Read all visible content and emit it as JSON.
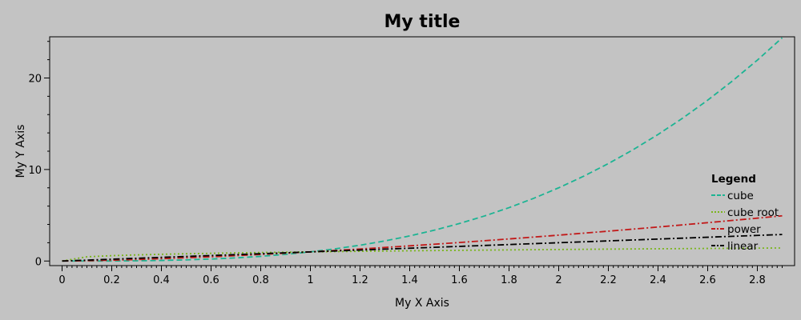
{
  "chart_data": {
    "type": "line",
    "title": "My title",
    "xlabel": "My X Axis",
    "ylabel": "My Y Axis",
    "xlim": [
      -0.05,
      2.95
    ],
    "ylim": [
      -0.5,
      24.5
    ],
    "x_ticks": [
      "0",
      "0.2",
      "0.4",
      "0.6",
      "0.8",
      "1",
      "1.2",
      "1.4",
      "1.6",
      "1.8",
      "2",
      "2.2",
      "2.4",
      "2.6",
      "2.8"
    ],
    "x_tick_values": [
      0,
      0.2,
      0.4,
      0.6,
      0.8,
      1,
      1.2,
      1.4,
      1.6,
      1.8,
      2,
      2.2,
      2.4,
      2.6,
      2.8
    ],
    "y_ticks": [
      "0",
      "10",
      "20"
    ],
    "y_tick_values": [
      0,
      10,
      20
    ],
    "grid": false,
    "legend": {
      "title": "Legend",
      "placement": "right"
    },
    "x": [
      0,
      0.1,
      0.2,
      0.3,
      0.4,
      0.5,
      0.6,
      0.7,
      0.8,
      0.9,
      1.0,
      1.1,
      1.2,
      1.3,
      1.4,
      1.5,
      1.6,
      1.7,
      1.8,
      1.9,
      2.0,
      2.1,
      2.2,
      2.3,
      2.4,
      2.5,
      2.6,
      2.7,
      2.8,
      2.9
    ],
    "series": [
      {
        "name": "cube",
        "color": "#1cb493",
        "dash": "dashed",
        "values": [
          0,
          0.001,
          0.008,
          0.027,
          0.064,
          0.125,
          0.216,
          0.343,
          0.512,
          0.729,
          1.0,
          1.331,
          1.728,
          2.197,
          2.744,
          3.375,
          4.096,
          4.913,
          5.832,
          6.859,
          8.0,
          9.261,
          10.648,
          12.167,
          13.824,
          15.625,
          17.576,
          19.683,
          21.952,
          24.389
        ]
      },
      {
        "name": "cube root",
        "color": "#7ab51d",
        "dash": "dotted",
        "values": [
          0,
          0.464,
          0.585,
          0.669,
          0.737,
          0.794,
          0.843,
          0.888,
          0.928,
          0.965,
          1.0,
          1.032,
          1.063,
          1.091,
          1.119,
          1.145,
          1.17,
          1.193,
          1.216,
          1.239,
          1.26,
          1.281,
          1.301,
          1.32,
          1.339,
          1.357,
          1.375,
          1.392,
          1.409,
          1.426
        ]
      },
      {
        "name": "power",
        "color": "#c21a1a",
        "dash": "dashdot",
        "values": [
          0,
          0.032,
          0.089,
          0.164,
          0.253,
          0.354,
          0.465,
          0.586,
          0.716,
          0.854,
          1.0,
          1.154,
          1.315,
          1.482,
          1.657,
          1.837,
          2.024,
          2.217,
          2.415,
          2.619,
          2.828,
          3.043,
          3.263,
          3.488,
          3.718,
          3.953,
          4.192,
          4.437,
          4.685,
          4.939
        ]
      },
      {
        "name": "linear",
        "color": "#000000",
        "dash": "dashdot",
        "values": [
          0,
          0.1,
          0.2,
          0.3,
          0.4,
          0.5,
          0.6,
          0.7,
          0.8,
          0.9,
          1.0,
          1.1,
          1.2,
          1.3,
          1.4,
          1.5,
          1.6,
          1.7,
          1.8,
          1.9,
          2.0,
          2.1,
          2.2,
          2.3,
          2.4,
          2.5,
          2.6,
          2.7,
          2.8,
          2.9
        ]
      }
    ]
  }
}
